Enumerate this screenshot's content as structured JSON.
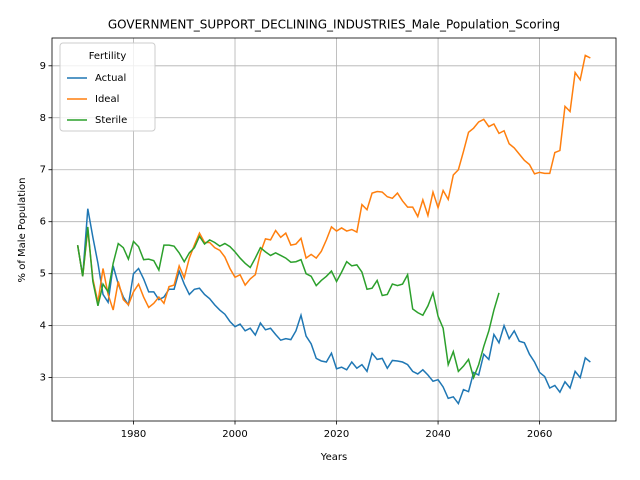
{
  "chart_data": {
    "type": "line",
    "title": "GOVERNMENT_SUPPORT_DECLINING_INDUSTRIES_Male_Population_Scoring",
    "xlabel": "Years",
    "ylabel": "% of Male Population",
    "legend_title": "Fertility",
    "legend_loc": "upper left",
    "grid": true,
    "xlim": [
      1963.95,
      2075.05
    ],
    "xticks": [
      1980,
      2000,
      2020,
      2040,
      2060
    ],
    "ylim": [
      2.165,
      9.535
    ],
    "yticks": [
      3,
      4,
      5,
      6,
      7,
      8,
      9
    ],
    "x": [
      1969,
      1970,
      1971,
      1972,
      1973,
      1974,
      1975,
      1976,
      1977,
      1978,
      1979,
      1980,
      1981,
      1982,
      1983,
      1984,
      1985,
      1986,
      1987,
      1988,
      1989,
      1990,
      1991,
      1992,
      1993,
      1994,
      1995,
      1996,
      1997,
      1998,
      1999,
      2000,
      2001,
      2002,
      2003,
      2004,
      2005,
      2006,
      2007,
      2008,
      2009,
      2010,
      2011,
      2012,
      2013,
      2014,
      2015,
      2016,
      2017,
      2018,
      2019,
      2020,
      2021,
      2022,
      2023,
      2024,
      2025,
      2026,
      2027,
      2028,
      2029,
      2030,
      2031,
      2032,
      2033,
      2034,
      2035,
      2036,
      2037,
      2038,
      2039,
      2040,
      2041,
      2042,
      2043,
      2044,
      2045,
      2046,
      2047,
      2048,
      2049,
      2050,
      2051,
      2052,
      2053,
      2054,
      2055,
      2056,
      2057,
      2058,
      2059,
      2060,
      2061,
      2062,
      2063,
      2064,
      2065,
      2066,
      2067,
      2068,
      2069,
      2070
    ],
    "series": [
      {
        "name": "Actual",
        "color": "#1f77b4",
        "values": [
          5.55,
          4.95,
          6.25,
          5.7,
          5.2,
          4.6,
          4.45,
          5.15,
          4.8,
          4.55,
          4.4,
          5.0,
          5.1,
          4.9,
          4.65,
          4.65,
          4.5,
          4.55,
          4.7,
          4.7,
          5.05,
          4.8,
          4.6,
          4.7,
          4.72,
          4.6,
          4.52,
          4.4,
          4.3,
          4.22,
          4.08,
          3.98,
          4.03,
          3.9,
          3.95,
          3.82,
          4.05,
          3.92,
          3.95,
          3.83,
          3.72,
          3.75,
          3.73,
          3.9,
          4.2,
          3.8,
          3.65,
          3.37,
          3.32,
          3.3,
          3.47,
          3.17,
          3.2,
          3.15,
          3.3,
          3.18,
          3.25,
          3.12,
          3.47,
          3.35,
          3.37,
          3.18,
          3.33,
          3.32,
          3.3,
          3.25,
          3.12,
          3.07,
          3.15,
          3.05,
          2.93,
          2.96,
          2.82,
          2.6,
          2.63,
          2.5,
          2.77,
          2.73,
          3.1,
          3.05,
          3.45,
          3.35,
          3.83,
          3.67,
          4.0,
          3.75,
          3.9,
          3.7,
          3.67,
          3.45,
          3.3,
          3.1,
          3.02,
          2.8,
          2.85,
          2.72,
          2.92,
          2.8,
          3.12,
          3.0,
          3.38,
          3.3
        ]
      },
      {
        "name": "Ideal",
        "color": "#ff7f0e",
        "values": [
          5.55,
          4.95,
          5.85,
          4.9,
          4.45,
          5.1,
          4.6,
          4.3,
          4.85,
          4.5,
          4.4,
          4.65,
          4.8,
          4.55,
          4.35,
          4.43,
          4.55,
          4.43,
          4.75,
          4.78,
          5.15,
          4.92,
          5.3,
          5.55,
          5.78,
          5.6,
          5.6,
          5.5,
          5.45,
          5.32,
          5.1,
          4.93,
          4.98,
          4.78,
          4.9,
          4.98,
          5.4,
          5.67,
          5.65,
          5.83,
          5.7,
          5.78,
          5.55,
          5.57,
          5.68,
          5.3,
          5.37,
          5.3,
          5.43,
          5.65,
          5.9,
          5.82,
          5.88,
          5.82,
          5.85,
          5.8,
          6.33,
          6.23,
          6.55,
          6.58,
          6.57,
          6.48,
          6.45,
          6.55,
          6.4,
          6.28,
          6.28,
          6.1,
          6.42,
          6.12,
          6.57,
          6.27,
          6.6,
          6.43,
          6.9,
          7.0,
          7.35,
          7.72,
          7.8,
          7.92,
          7.97,
          7.83,
          7.88,
          7.7,
          7.75,
          7.5,
          7.42,
          7.3,
          7.18,
          7.1,
          6.92,
          6.95,
          6.93,
          6.93,
          7.33,
          7.37,
          8.22,
          8.12,
          8.87,
          8.73,
          9.2,
          9.15
        ]
      },
      {
        "name": "Sterile",
        "color": "#2ca02c",
        "values": [
          5.55,
          4.95,
          5.9,
          4.85,
          4.38,
          4.8,
          4.65,
          5.2,
          5.58,
          5.5,
          5.28,
          5.62,
          5.52,
          5.27,
          5.28,
          5.25,
          5.07,
          5.55,
          5.55,
          5.53,
          5.4,
          5.23,
          5.4,
          5.5,
          5.72,
          5.57,
          5.65,
          5.6,
          5.53,
          5.58,
          5.52,
          5.42,
          5.3,
          5.2,
          5.12,
          5.3,
          5.5,
          5.42,
          5.35,
          5.4,
          5.35,
          5.3,
          5.22,
          5.23,
          5.27,
          5.0,
          4.95,
          4.77,
          4.87,
          4.95,
          5.05,
          4.85,
          5.03,
          5.23,
          5.15,
          5.17,
          5.03,
          4.7,
          4.72,
          4.87,
          4.58,
          4.6,
          4.8,
          4.77,
          4.8,
          4.98,
          4.32,
          4.25,
          4.2,
          4.38,
          4.63,
          4.18,
          3.95,
          3.25,
          3.5,
          3.12,
          3.22,
          3.35,
          3.0,
          3.25,
          3.6,
          3.9,
          4.3,
          4.63,
          null,
          null,
          null,
          null,
          null,
          null,
          null,
          null,
          null,
          null,
          null,
          null,
          null,
          null,
          null,
          null,
          null,
          null
        ]
      }
    ]
  }
}
